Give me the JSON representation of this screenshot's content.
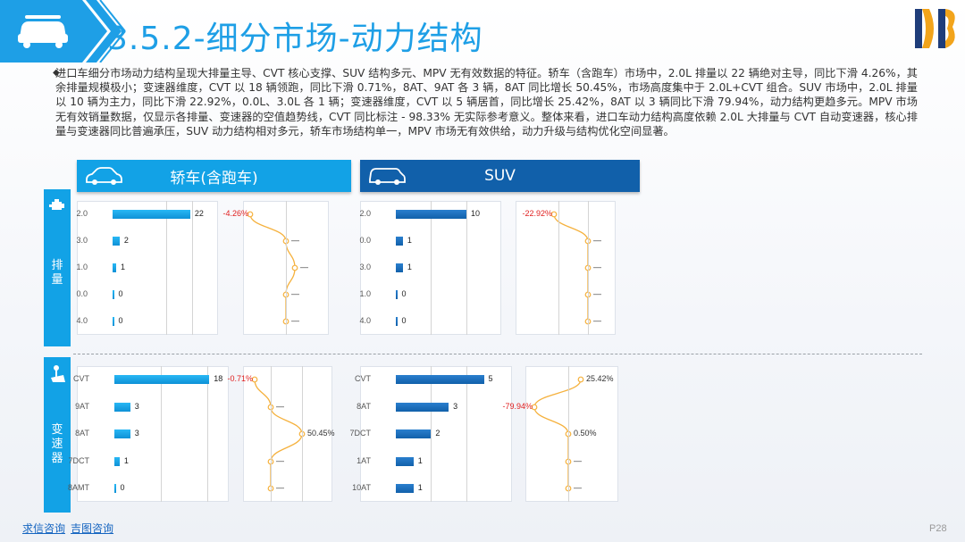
{
  "header": {
    "title": "3.5.2-细分市场-动力结构",
    "colors": {
      "blue": "#1e9fe6",
      "dark": "#0d47a1"
    }
  },
  "intro": "进口车细分市场动力结构呈现大排量主导、CVT 核心支撑、SUV 结构多元、MPV 无有效数据的特征。轿车（含跑车）市场中，2.0L 排量以 22 辆绝对主导，同比下滑 4.26%，其余排量规模极小；变速器维度，CVT 以 18 辆领跑，同比下滑 0.71%，8AT、9AT 各 3 辆，8AT 同比增长 50.45%，市场高度集中于 2.0L+CVT 组合。SUV 市场中，2.0L 排量以 10 辆为主力，同比下滑 22.92%，0.0L、3.0L 各 1 辆；变速器维度，CVT 以 5 辆居首，同比增长 25.42%，8AT 以 3 辆同比下滑 79.94%，动力结构更趋多元。MPV 市场无有效销量数据，仅显示各排量、变速器的空值趋势线，CVT 同比标注 - 98.33% 无实际参考意义。整体来看，进口车动力结构高度依赖 2.0L 大排量与 CVT 自动变速器，核心排量与变速器同比普遍承压，SUV 动力结构相对多元，轿车市场结构单一，MPV 市场无有效供给，动力升级与结构优化空间显著。",
  "sections": {
    "sedan": "轿车(含跑车)",
    "suv": "SUV"
  },
  "side": {
    "displacement": [
      "排",
      "量"
    ],
    "transmission": [
      "变",
      "速",
      "器"
    ]
  },
  "icons": {
    "header": "car-icon",
    "logo": "db-logo",
    "side_top": "engine-icon",
    "side_bottom": "gear-shift-icon"
  },
  "chart_data": [
    {
      "type": "bar",
      "name": "sedan-displacement",
      "categories": [
        "2.0",
        "3.0",
        "1.0",
        "0.0",
        "4.0"
      ],
      "values": [
        22,
        2,
        1,
        0,
        0
      ],
      "yoy": [
        "-4.26%",
        "—",
        "—",
        "—",
        "—"
      ],
      "yoy_level": [
        -4.26,
        0,
        0,
        0,
        0
      ]
    },
    {
      "type": "bar",
      "name": "suv-displacement",
      "categories": [
        "2.0",
        "0.0",
        "3.0",
        "1.0",
        "4.0"
      ],
      "values": [
        10,
        1,
        1,
        0,
        0
      ],
      "yoy": [
        "-22.92%",
        "—",
        "—",
        "—",
        "—"
      ],
      "yoy_level": [
        -22.92,
        0,
        0,
        0,
        0
      ]
    },
    {
      "type": "bar",
      "name": "sedan-transmission",
      "categories": [
        "CVT",
        "9AT",
        "8AT",
        "7DCT",
        "8AMT"
      ],
      "values": [
        18,
        3,
        3,
        1,
        0
      ],
      "yoy": [
        "-0.71%",
        "—",
        "50.45%",
        "—",
        "—"
      ],
      "yoy_level": [
        -0.71,
        0,
        50.45,
        0,
        0
      ]
    },
    {
      "type": "bar",
      "name": "suv-transmission",
      "categories": [
        "CVT",
        "8AT",
        "7DCT",
        "1AT",
        "10AT"
      ],
      "values": [
        5,
        3,
        2,
        1,
        1
      ],
      "yoy": [
        "25.42%",
        "-79.94%",
        "0.50%",
        "—",
        "—"
      ],
      "yoy_level": [
        25.42,
        -79.94,
        0.5,
        0,
        0
      ]
    }
  ],
  "footer": {
    "link1": "求信咨询",
    "link2": "吉图咨询",
    "page": "P28"
  }
}
